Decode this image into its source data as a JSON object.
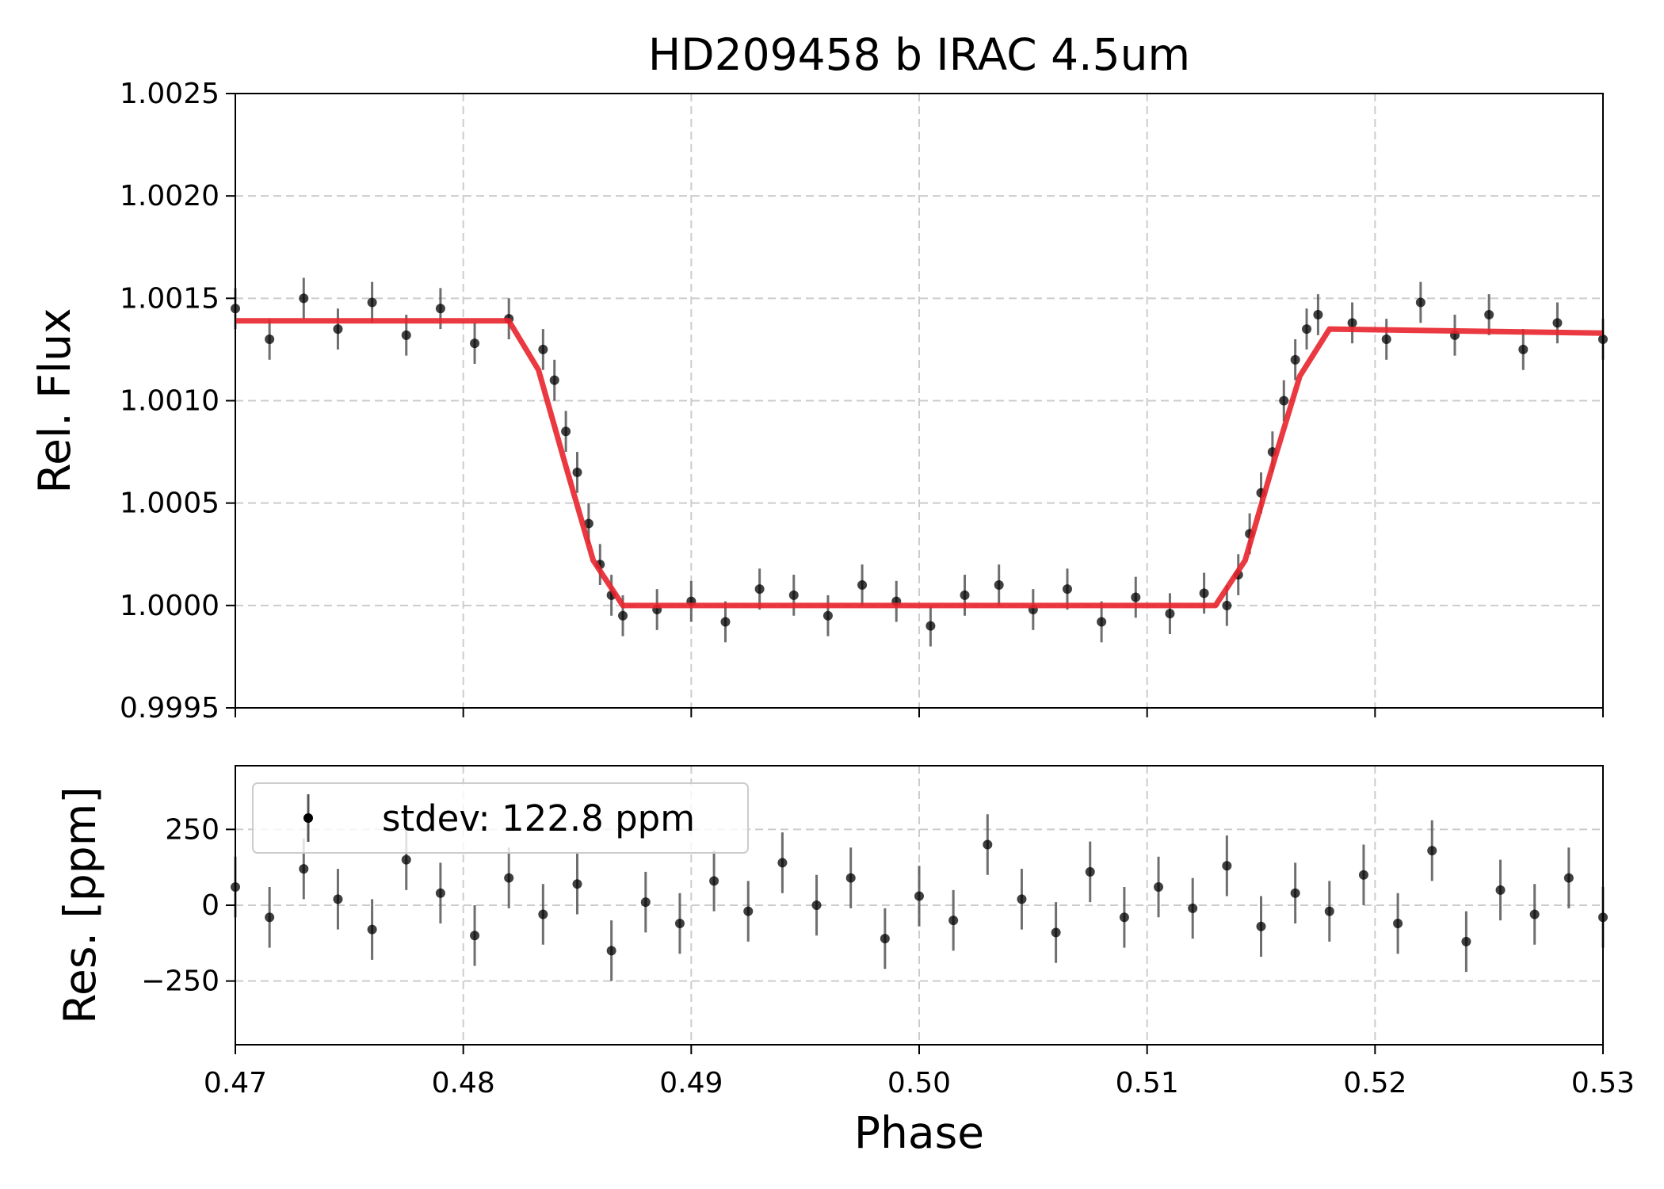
{
  "chart_data": [
    {
      "type": "scatter",
      "title": "HD209458 b IRAC 4.5um",
      "ylabel": "Rel. Flux",
      "xlim": [
        0.47,
        0.53
      ],
      "ylim": [
        0.9995,
        1.0025
      ],
      "x_ticks": [
        0.47,
        0.48,
        0.49,
        0.5,
        0.51,
        0.52,
        0.53
      ],
      "y_ticks": [
        0.9995,
        1.0,
        1.0005,
        1.001,
        1.0015,
        1.002,
        1.0025
      ],
      "y_tick_labels": [
        "0.9995",
        "1.0000",
        "1.0005",
        "1.0010",
        "1.0015",
        "1.0020",
        "1.0025"
      ],
      "grid": true,
      "series": [
        {
          "kind": "errorbar",
          "color": "#000000",
          "errorbar_color": "#555555",
          "yerr": 0.0001,
          "x": [
            0.47,
            0.4715,
            0.473,
            0.4745,
            0.476,
            0.4775,
            0.479,
            0.4805,
            0.482,
            0.4835,
            0.484,
            0.4845,
            0.485,
            0.4855,
            0.486,
            0.4865,
            0.487,
            0.4885,
            0.49,
            0.4915,
            0.493,
            0.4945,
            0.496,
            0.4975,
            0.499,
            0.5005,
            0.502,
            0.5035,
            0.505,
            0.5065,
            0.508,
            0.5095,
            0.511,
            0.5125,
            0.5135,
            0.514,
            0.5145,
            0.515,
            0.5155,
            0.516,
            0.5165,
            0.517,
            0.5175,
            0.519,
            0.5205,
            0.522,
            0.5235,
            0.525,
            0.5265,
            0.528,
            0.53
          ],
          "y": [
            1.00145,
            1.0013,
            1.0015,
            1.00135,
            1.00148,
            1.00132,
            1.00145,
            1.00128,
            1.0014,
            1.00125,
            1.0011,
            1.00085,
            1.00065,
            1.0004,
            1.0002,
            1.00005,
            0.99995,
            0.99998,
            1.00002,
            0.99992,
            1.00008,
            1.00005,
            0.99995,
            1.0001,
            1.00002,
            0.9999,
            1.00005,
            1.0001,
            0.99998,
            1.00008,
            0.99992,
            1.00004,
            0.99996,
            1.00006,
            1.0,
            1.00015,
            1.00035,
            1.00055,
            1.00075,
            1.001,
            1.0012,
            1.00135,
            1.00142,
            1.00138,
            1.0013,
            1.00148,
            1.00132,
            1.00142,
            1.00125,
            1.00138,
            1.0013
          ]
        },
        {
          "kind": "model",
          "color": "#e8242b",
          "x": [
            0.47,
            0.482,
            0.4833,
            0.4845,
            0.4857,
            0.487,
            0.513,
            0.5143,
            0.5155,
            0.5167,
            0.518,
            0.53
          ],
          "y": [
            1.00139,
            1.00139,
            1.00115,
            1.00068,
            1.00022,
            1.0,
            1.0,
            1.00022,
            1.00068,
            1.00112,
            1.00135,
            1.00133
          ]
        }
      ]
    },
    {
      "type": "scatter",
      "xlabel": "Phase",
      "ylabel": "Res. [ppm]",
      "xlim": [
        0.47,
        0.53
      ],
      "ylim": [
        -460,
        460
      ],
      "x_ticks": [
        0.47,
        0.48,
        0.49,
        0.5,
        0.51,
        0.52,
        0.53
      ],
      "x_tick_labels": [
        "0.47",
        "0.48",
        "0.49",
        "0.50",
        "0.51",
        "0.52",
        "0.53"
      ],
      "y_ticks": [
        -250,
        0,
        250
      ],
      "y_tick_labels": [
        "−250",
        "0",
        "250"
      ],
      "grid": true,
      "legend": {
        "placement": "upper-left",
        "entries": [
          "stdev: 122.8 ppm"
        ]
      },
      "series": [
        {
          "name": "stdev: 122.8 ppm",
          "kind": "errorbar",
          "color": "#000000",
          "errorbar_color": "#555555",
          "yerr": 100,
          "x": [
            0.47,
            0.4715,
            0.473,
            0.4745,
            0.476,
            0.4775,
            0.479,
            0.4805,
            0.482,
            0.4835,
            0.485,
            0.4865,
            0.488,
            0.4895,
            0.491,
            0.4925,
            0.494,
            0.4955,
            0.497,
            0.4985,
            0.5,
            0.5015,
            0.503,
            0.5045,
            0.506,
            0.5075,
            0.509,
            0.5105,
            0.512,
            0.5135,
            0.515,
            0.5165,
            0.518,
            0.5195,
            0.521,
            0.5225,
            0.524,
            0.5255,
            0.527,
            0.5285,
            0.53
          ],
          "y": [
            60,
            -40,
            120,
            20,
            -80,
            150,
            40,
            -100,
            90,
            -30,
            70,
            -150,
            10,
            -60,
            80,
            -20,
            140,
            0,
            90,
            -110,
            30,
            -50,
            200,
            20,
            -90,
            110,
            -40,
            60,
            -10,
            130,
            -70,
            40,
            -20,
            100,
            -60,
            180,
            -120,
            50,
            -30,
            90,
            -40
          ]
        }
      ]
    }
  ]
}
